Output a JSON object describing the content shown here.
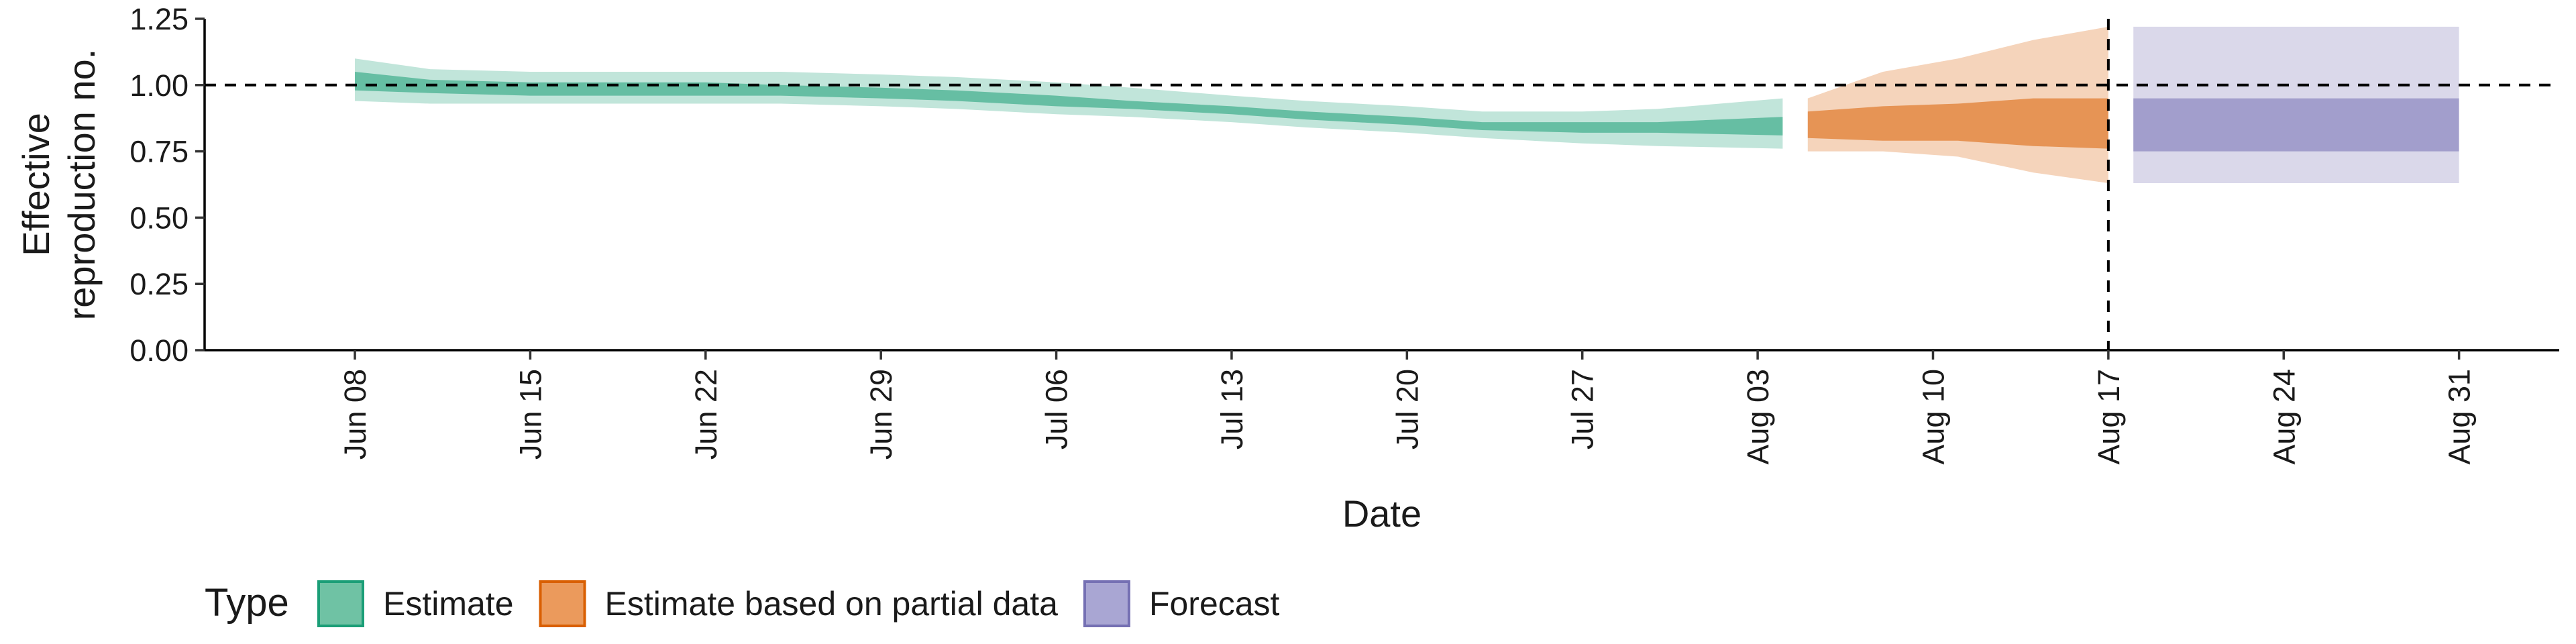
{
  "chart_data": {
    "type": "area",
    "xlabel": "Date",
    "ylabel": [
      "Effective",
      "reproduction no."
    ],
    "ylim": [
      0,
      1.25
    ],
    "xlim": [
      "2020-06-02",
      "2020-09-04"
    ],
    "y_ticks": [
      "0.00",
      "0.25",
      "0.50",
      "0.75",
      "1.00",
      "1.25"
    ],
    "y_tick_values": [
      0,
      0.25,
      0.5,
      0.75,
      1.0,
      1.25
    ],
    "x_ticks": [
      {
        "date": "2020-06-08",
        "label": "Jun 08"
      },
      {
        "date": "2020-06-15",
        "label": "Jun 15"
      },
      {
        "date": "2020-06-22",
        "label": "Jun 22"
      },
      {
        "date": "2020-06-29",
        "label": "Jun 29"
      },
      {
        "date": "2020-07-06",
        "label": "Jul 06"
      },
      {
        "date": "2020-07-13",
        "label": "Jul 13"
      },
      {
        "date": "2020-07-20",
        "label": "Jul 20"
      },
      {
        "date": "2020-07-27",
        "label": "Jul 27"
      },
      {
        "date": "2020-08-03",
        "label": "Aug 03"
      },
      {
        "date": "2020-08-10",
        "label": "Aug 10"
      },
      {
        "date": "2020-08-17",
        "label": "Aug 17"
      },
      {
        "date": "2020-08-24",
        "label": "Aug 24"
      },
      {
        "date": "2020-08-31",
        "label": "Aug 31"
      }
    ],
    "reference_hline": 1.0,
    "reference_vline": "2020-08-17",
    "grid": false,
    "legend": {
      "position": "bottom-left",
      "title": "Type",
      "entries": [
        {
          "label": "Estimate",
          "fill": "#6fc2a4",
          "border": "#1b9e77"
        },
        {
          "label": "Estimate based on partial data",
          "fill": "#eb9a5c",
          "border": "#d95f02"
        },
        {
          "label": "Forecast",
          "fill": "#a9a6d3",
          "border": "#7570b3"
        }
      ]
    },
    "series": [
      {
        "name": "Estimate",
        "color": "#1b9e77",
        "x": [
          "2020-06-08",
          "2020-06-11",
          "2020-06-15",
          "2020-06-18",
          "2020-06-22",
          "2020-06-25",
          "2020-06-29",
          "2020-07-02",
          "2020-07-06",
          "2020-07-09",
          "2020-07-13",
          "2020-07-16",
          "2020-07-20",
          "2020-07-23",
          "2020-07-27",
          "2020-07-30",
          "2020-08-04"
        ],
        "lower90": [
          0.94,
          0.93,
          0.93,
          0.93,
          0.93,
          0.93,
          0.92,
          0.91,
          0.89,
          0.88,
          0.86,
          0.84,
          0.82,
          0.8,
          0.78,
          0.77,
          0.76
        ],
        "upper90": [
          1.1,
          1.06,
          1.05,
          1.05,
          1.05,
          1.05,
          1.04,
          1.03,
          1.01,
          0.99,
          0.96,
          0.94,
          0.92,
          0.9,
          0.9,
          0.91,
          0.95
        ],
        "lower50": [
          0.98,
          0.97,
          0.96,
          0.96,
          0.96,
          0.96,
          0.95,
          0.94,
          0.92,
          0.91,
          0.89,
          0.87,
          0.85,
          0.83,
          0.82,
          0.82,
          0.81
        ],
        "upper50": [
          1.05,
          1.02,
          1.01,
          1.01,
          1.01,
          1.0,
          0.99,
          0.98,
          0.96,
          0.94,
          0.92,
          0.9,
          0.88,
          0.86,
          0.86,
          0.86,
          0.88
        ]
      },
      {
        "name": "Estimate based on partial data",
        "color": "#d95f02",
        "x": [
          "2020-08-05",
          "2020-08-08",
          "2020-08-11",
          "2020-08-14",
          "2020-08-17"
        ],
        "lower90": [
          0.75,
          0.75,
          0.73,
          0.67,
          0.63
        ],
        "upper90": [
          0.95,
          1.05,
          1.1,
          1.17,
          1.22
        ],
        "lower50": [
          0.8,
          0.79,
          0.79,
          0.77,
          0.76
        ],
        "upper50": [
          0.9,
          0.92,
          0.93,
          0.95,
          0.95
        ]
      },
      {
        "name": "Forecast",
        "color": "#7570b3",
        "x": [
          "2020-08-18",
          "2020-08-31"
        ],
        "lower90": [
          0.63,
          0.63
        ],
        "upper90": [
          1.22,
          1.22
        ],
        "lower50": [
          0.75,
          0.75
        ],
        "upper50": [
          0.95,
          0.95
        ]
      }
    ]
  }
}
